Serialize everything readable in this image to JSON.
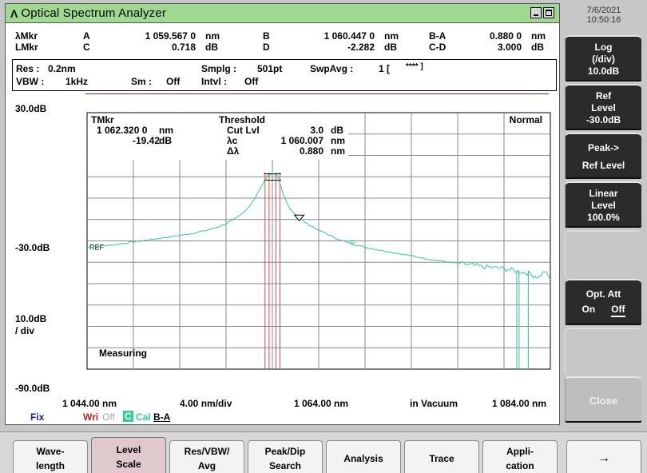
{
  "window": {
    "title": "Optical Spectrum Analyzer",
    "icon": "lambda-glyph",
    "app_glyph": "Λ"
  },
  "markers": {
    "row1_label": "λMkr",
    "row2_label": "LMkr",
    "A_label": "A",
    "A_value": "1 059.567 0",
    "A_unit": "nm",
    "B_label": "B",
    "B_value": "1 060.447 0",
    "B_unit": "nm",
    "BA_label": "B-A",
    "BA_value": "0.880 0",
    "BA_unit": "nm",
    "C_label": "C",
    "C_value": "0.718",
    "C_unit": "dB",
    "D_label": "D",
    "D_value": "-2.282",
    "D_unit": "dB",
    "CD_label": "C-D",
    "CD_value": "3.000",
    "CD_unit": "dB"
  },
  "params": {
    "res_label": "Res :",
    "res_value": "0.2nm",
    "vbw_label": "VBW :",
    "vbw_value": "1kHz",
    "sm_label": "Sm :",
    "sm_value": "Off",
    "smplg_label": "Smplg :",
    "smplg_value": "501pt",
    "intvl_label": "Intvl :",
    "intvl_value": "Off",
    "swpavg_label": "SwpAvg :",
    "swpavg_value": "1 [",
    "swpavg_stars": "****  ]"
  },
  "plot": {
    "y_top": "30.0dB",
    "y_ref": "-30.0dB",
    "y_bottom": "-90.0dB",
    "y_div": "10.0dB",
    "y_div2": "/ div",
    "x_start": "1 044.00 nm",
    "x_div": "4.00 nm/div",
    "x_center": "1 064.00 nm",
    "x_medium": "in Vacuum",
    "x_end": "1 084.00 nm",
    "ref_label": "REF",
    "mode_label": "Normal",
    "status_label": "Measuring",
    "tmkr_label": "TMkr",
    "tmkr_wavelength": "1 062.320 0",
    "tmkr_wavelength_unit": "nm",
    "tmkr_level": "-19.42",
    "tmkr_level_unit": "dB",
    "threshold_label": "Threshold",
    "cutlvl_label": "Cut Lvl",
    "cutlvl_value": "3.0",
    "cutlvl_unit": "dB",
    "lc_label": "λc",
    "lc_value": "1 060.007",
    "lc_unit": "nm",
    "dl_label": "Δλ",
    "dl_value": "0.880",
    "dl_unit": "nm",
    "trace_color": "#2ecf95",
    "marker_line_color": "#d64a4a"
  },
  "chart_data": {
    "type": "line",
    "xlabel": "",
    "ylabel": "",
    "xlim": [
      1044,
      1084
    ],
    "ylim": [
      -90,
      30
    ],
    "grid": true,
    "series": [
      {
        "x": [
          1044,
          1046,
          1048,
          1050,
          1052,
          1054,
          1055,
          1056,
          1057,
          1058,
          1058.5,
          1059,
          1059.4,
          1059.6,
          1060.0,
          1060.4,
          1060.6,
          1061.0,
          1061.5,
          1062.32,
          1063,
          1064,
          1066,
          1068,
          1070,
          1072,
          1074,
          1076,
          1078,
          1080,
          1081,
          1082,
          1082.5,
          1083,
          1083.5,
          1084
        ],
        "y": [
          -33,
          -32,
          -30.5,
          -29,
          -27.5,
          -25.5,
          -24,
          -22,
          -19,
          -14,
          -10,
          -5,
          -1.5,
          0.7,
          1.2,
          1.0,
          -2.3,
          -9,
          -15,
          -19.42,
          -22,
          -25,
          -30,
          -33,
          -35,
          -37,
          -39,
          -40.5,
          -42,
          -43,
          -44,
          -45,
          -46,
          -47,
          -44,
          -48
        ]
      }
    ],
    "markers": {
      "A_nm": 1059.567,
      "B_nm": 1060.447,
      "TMkr_nm": 1062.32,
      "TMkr_dB": -19.42
    }
  },
  "bottom": {
    "fix": "Fix",
    "wri": "Wri",
    "wri_state": "Off",
    "cal_box": "C",
    "cal": "Cal",
    "cal_trace": "B-A"
  },
  "right_panel": {
    "date": "7/6/2021",
    "time": "10:50:16",
    "softkeys": [
      {
        "line1": "Log",
        "line2": "(/div)",
        "line3": "10.0dB"
      },
      {
        "line1": "Ref",
        "line2": "Level",
        "line3": "-30.0dB"
      },
      {
        "line1": "Peak->",
        "line2": "Ref Level"
      },
      {
        "line1": "Linear",
        "line2": "Level",
        "line3": "100.0%"
      }
    ],
    "opt_att": {
      "label": "Opt. Att",
      "on": "On",
      "off": "Off"
    },
    "close": "Close"
  },
  "tabs": [
    {
      "line1": "Wave-",
      "line2": "length"
    },
    {
      "line1": "Level",
      "line2": "Scale"
    },
    {
      "line1": "Res/VBW/",
      "line2": "Avg"
    },
    {
      "line1": "Peak/Dip",
      "line2": "Search"
    },
    {
      "line1": "Analysis"
    },
    {
      "line1": "Trace"
    },
    {
      "line1": "Appli-",
      "line2": "cation"
    },
    {
      "line1": "→"
    }
  ]
}
